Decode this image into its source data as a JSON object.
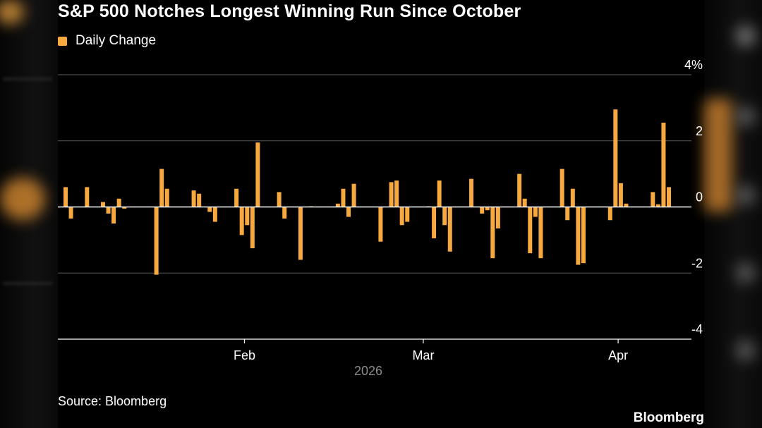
{
  "chart_data": {
    "type": "bar",
    "title": "S&P 500 Notches Longest Winning Run Since October",
    "legend": [
      {
        "label": "Daily Change",
        "color": "#F7A83E"
      }
    ],
    "xlabel": "",
    "ylabel": "",
    "ylim": [
      -4,
      4
    ],
    "y_ticks": [
      {
        "value": 4,
        "label": "4%"
      },
      {
        "value": 2,
        "label": "2"
      },
      {
        "value": 0,
        "label": "0"
      },
      {
        "value": -2,
        "label": "-2"
      },
      {
        "value": -4,
        "label": "-4"
      }
    ],
    "x_ticks": [
      {
        "index": 33.5,
        "label": "Feb"
      },
      {
        "index": 67,
        "label": "Mar"
      },
      {
        "index": 103.5,
        "label": "Apr"
      }
    ],
    "year_label": "2026",
    "bar_color": "#F7A83E",
    "grid": true,
    "values": [
      0.6,
      -0.35,
      0,
      0,
      0.6,
      0,
      0,
      0.15,
      -0.2,
      -0.5,
      0.25,
      -0.05,
      0,
      0,
      0,
      0,
      0,
      -2.05,
      1.15,
      0.55,
      0,
      0,
      0,
      0,
      0.5,
      0.4,
      0,
      -0.15,
      -0.45,
      0,
      0,
      0,
      0.55,
      -0.85,
      -0.55,
      -1.25,
      1.95,
      0,
      0,
      0,
      0.45,
      -0.35,
      0,
      0,
      -1.6,
      0,
      0.02,
      0,
      0,
      0,
      0,
      0.1,
      0.55,
      -0.3,
      0.7,
      0,
      0,
      0,
      0,
      -1.05,
      0,
      0.75,
      0.8,
      -0.55,
      -0.45,
      0,
      0,
      0,
      0.02,
      -0.95,
      0.8,
      -0.55,
      -1.35,
      0,
      0,
      0,
      0.85,
      0,
      -0.2,
      -0.1,
      -1.55,
      -0.65,
      0,
      0,
      0,
      1.0,
      0.25,
      -1.4,
      -0.3,
      -1.55,
      0,
      0,
      0,
      1.15,
      -0.4,
      0.55,
      -1.75,
      -1.7,
      0,
      0,
      0,
      0,
      -0.4,
      2.95,
      0.72,
      0.1,
      0,
      0,
      0,
      0,
      0.45,
      0.08,
      2.55,
      0.6
    ],
    "annotations": [
      "2026"
    ]
  },
  "footer": {
    "source": "Source: Bloomberg",
    "brand": "Bloomberg"
  }
}
